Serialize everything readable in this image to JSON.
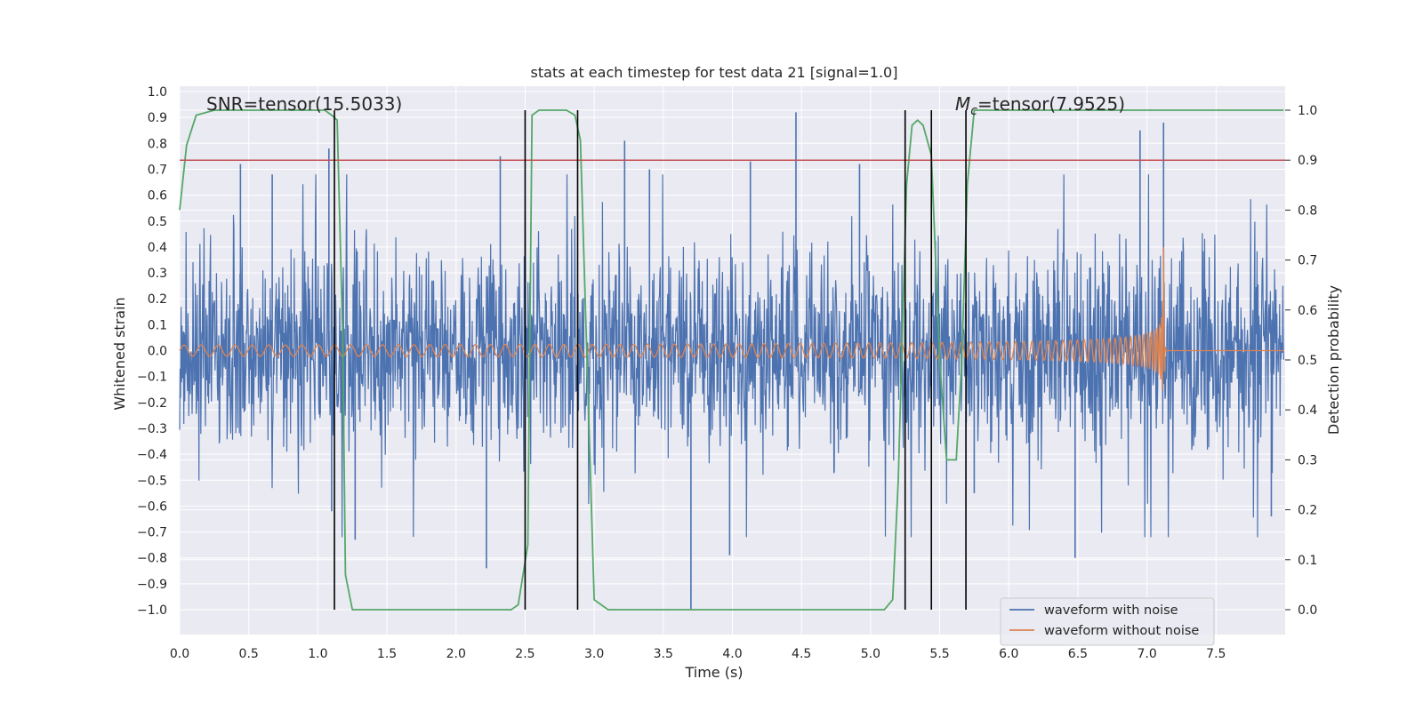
{
  "chart_data": {
    "type": "line",
    "title": "stats at each timestep for test data 21 [signal=1.0]",
    "xlabel": "Time (s)",
    "ylabel": "Whitened strain",
    "y2label": "Detection probability",
    "xlim": [
      0.0,
      8.0
    ],
    "ylim": [
      -1.1,
      1.02
    ],
    "y2lim": [
      -0.048,
      1.04
    ],
    "xticks": [
      "0.0",
      "0.5",
      "1.0",
      "1.5",
      "2.0",
      "2.5",
      "3.0",
      "3.5",
      "4.0",
      "4.5",
      "5.0",
      "5.5",
      "6.0",
      "6.5",
      "7.0",
      "7.5"
    ],
    "yticks": [
      "1.0",
      "0.9",
      "0.8",
      "0.7",
      "0.6",
      "0.5",
      "0.4",
      "0.3",
      "0.2",
      "0.1",
      "0.0",
      "−0.1",
      "−0.2",
      "−0.3",
      "−0.4",
      "−0.5",
      "−0.6",
      "−0.7",
      "−0.8",
      "−0.9",
      "−1.0"
    ],
    "y2ticks": [
      "1.0",
      "0.9",
      "0.8",
      "0.7",
      "0.6",
      "0.5",
      "0.4",
      "0.3",
      "0.2",
      "0.1",
      "0.0"
    ],
    "annotations": {
      "snr": "SNR=tensor(15.5033)",
      "mc_symbol": "M",
      "mc_sub": "c",
      "mc_value": "=tensor(7.9525)"
    },
    "threshold": {
      "axis": "y2",
      "value": 0.9,
      "color": "#c44e52"
    },
    "vlines": [
      1.12,
      2.5,
      2.88,
      5.25,
      5.44,
      5.69
    ],
    "series": [
      {
        "name": "waveform with noise",
        "color": "#4c72b0",
        "description": "noisy whitened strain, roughly within -0.6..0.6 with spikes up to 0.92 and down to -1.0",
        "spikes": [
          [
            0.44,
            0.72
          ],
          [
            0.67,
            0.68
          ],
          [
            1.08,
            0.78
          ],
          [
            1.1,
            -0.62
          ],
          [
            1.27,
            -0.73
          ],
          [
            2.22,
            -0.84
          ],
          [
            2.32,
            0.75
          ],
          [
            3.22,
            0.81
          ],
          [
            3.4,
            0.7
          ],
          [
            3.7,
            -1.0
          ],
          [
            3.98,
            -0.79
          ],
          [
            4.13,
            0.73
          ],
          [
            4.46,
            0.92
          ],
          [
            4.92,
            0.72
          ],
          [
            5.75,
            -0.55
          ],
          [
            6.95,
            0.85
          ],
          [
            7.12,
            0.88
          ],
          [
            6.48,
            -0.8
          ],
          [
            7.9,
            -0.64
          ]
        ]
      },
      {
        "name": "waveform without noise",
        "color": "#dd8452",
        "description": "GW chirp, amplitude 0.02 growing to peak ~0.48 at merger t=7.12 s, then ringdown to 0",
        "merger_time": 7.12,
        "peak_amplitude": 0.48,
        "start_amplitude": 0.02
      },
      {
        "name": "detection probability",
        "color": "#55a868",
        "axis": "y2",
        "x": [
          0.0,
          0.05,
          0.12,
          0.25,
          0.5,
          0.8,
          1.05,
          1.1,
          1.14,
          1.18,
          1.2,
          1.25,
          1.35,
          2.0,
          2.4,
          2.45,
          2.52,
          2.55,
          2.6,
          2.65,
          2.8,
          2.86,
          2.9,
          3.0,
          3.1,
          4.0,
          5.0,
          5.1,
          5.16,
          5.2,
          5.26,
          5.3,
          5.34,
          5.38,
          5.44,
          5.5,
          5.55,
          5.62,
          5.66,
          5.7,
          5.75,
          7.99
        ],
        "y": [
          0.8,
          0.93,
          0.99,
          1.0,
          1.0,
          1.0,
          1.0,
          0.99,
          0.98,
          0.55,
          0.07,
          0.0,
          0.0,
          0.0,
          0.0,
          0.01,
          0.13,
          0.99,
          1.0,
          1.0,
          1.0,
          0.99,
          0.94,
          0.02,
          0.0,
          0.0,
          0.0,
          0.0,
          0.02,
          0.26,
          0.85,
          0.97,
          0.98,
          0.97,
          0.91,
          0.5,
          0.3,
          0.3,
          0.5,
          0.85,
          1.0,
          1.0
        ]
      }
    ],
    "legend_position": "lower-right"
  }
}
